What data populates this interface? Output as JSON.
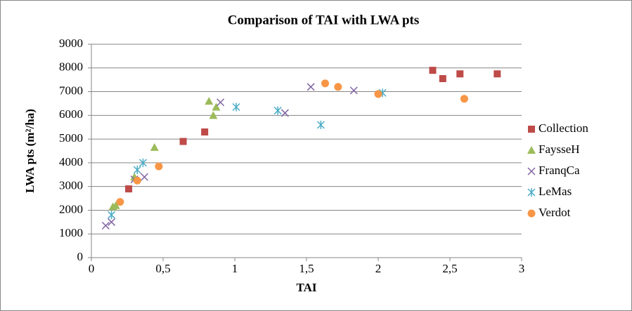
{
  "chart_data": {
    "type": "scatter",
    "title": "Comparison of TAI with LWA pts",
    "x_label": "TAI",
    "y_label": "LWA pts (m²/ha)",
    "xlim": [
      0,
      3
    ],
    "xticks": [
      0,
      {
        "value": 0.5,
        "label": "0,5"
      },
      1,
      {
        "value": 1.5,
        "label": "1,5"
      },
      2,
      {
        "value": 2.5,
        "label": "2,5"
      },
      3
    ],
    "ylim": [
      0,
      9000
    ],
    "yticks": [
      0,
      1000,
      2000,
      3000,
      4000,
      5000,
      6000,
      7000,
      8000,
      9000
    ],
    "grid": true,
    "legend": "right",
    "series": [
      {
        "name": "Collection",
        "color": "#be4b48",
        "marker": "square",
        "x": [
          0.26,
          0.64,
          0.79,
          2.38,
          2.45,
          2.57,
          2.83
        ],
        "values": [
          2900,
          4900,
          5300,
          7900,
          7550,
          7750,
          7750
        ]
      },
      {
        "name": "FaysseH",
        "color": "#9bbb59",
        "marker": "triangle",
        "x": [
          0.15,
          0.17,
          0.3,
          0.44,
          0.82,
          0.85,
          0.87
        ],
        "values": [
          2150,
          2200,
          3400,
          4650,
          6600,
          6000,
          6350
        ]
      },
      {
        "name": "FranqCa",
        "color": "#8064a2",
        "marker": "cross",
        "x": [
          0.1,
          0.14,
          0.3,
          0.37,
          0.9,
          1.35,
          1.53,
          1.83
        ],
        "values": [
          1350,
          1500,
          3300,
          3400,
          6550,
          6100,
          7200,
          7050
        ]
      },
      {
        "name": "LeMas",
        "color": "#4bacc6",
        "marker": "star",
        "x": [
          0.14,
          0.32,
          0.36,
          1.01,
          1.3,
          1.6,
          2.03
        ],
        "values": [
          1800,
          3700,
          4000,
          6350,
          6200,
          5600,
          6950
        ]
      },
      {
        "name": "Verdot",
        "color": "#f79646",
        "marker": "circle",
        "x": [
          0.2,
          0.32,
          0.47,
          1.63,
          1.72,
          2.0,
          2.6
        ],
        "values": [
          2350,
          3250,
          3850,
          7350,
          7200,
          6900,
          6700
        ]
      }
    ]
  }
}
